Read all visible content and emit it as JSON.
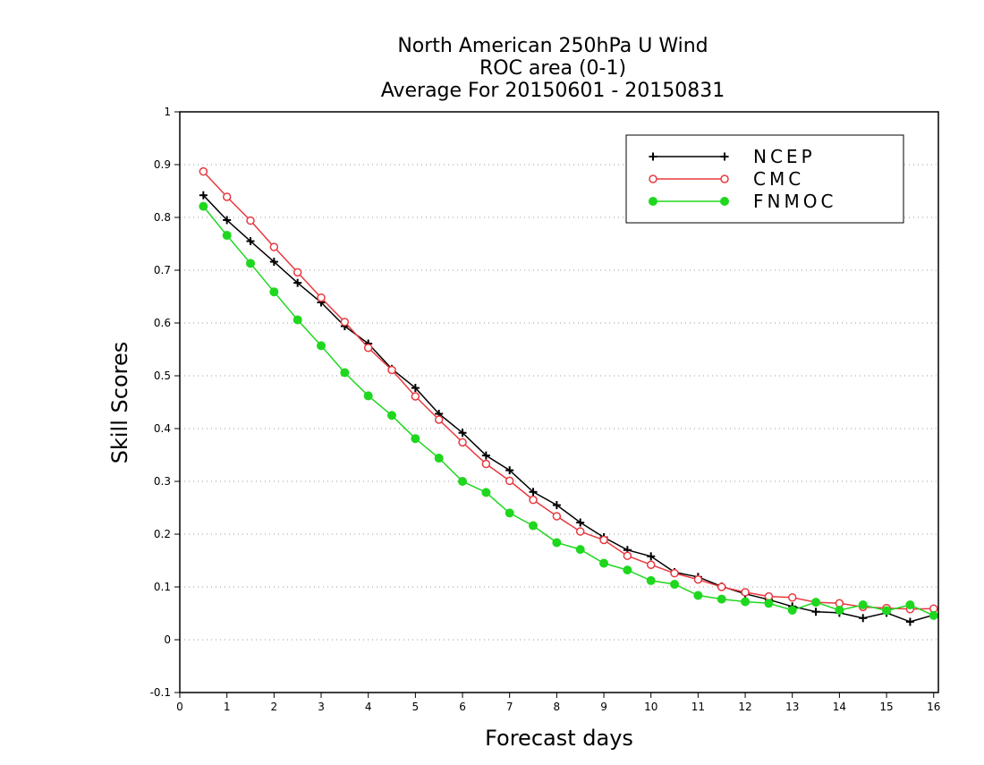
{
  "chart_data": {
    "type": "line",
    "title_lines": [
      "North American 250hPa U Wind",
      "ROC area (0-1)",
      "Average For 20150601 - 20150831"
    ],
    "xlabel": "Forecast days",
    "ylabel": "Skill Scores",
    "xlim": [
      0,
      16.1
    ],
    "ylim": [
      -0.1,
      1
    ],
    "x_ticks": [
      0,
      1,
      2,
      3,
      4,
      5,
      6,
      7,
      8,
      9,
      10,
      11,
      12,
      13,
      14,
      15,
      16
    ],
    "x_tick_labels": [
      "0",
      "1",
      "2",
      "3",
      "4",
      "5",
      "6",
      "7",
      "8",
      "9",
      "10",
      "11",
      "12",
      "13",
      "14",
      "15",
      "16"
    ],
    "y_ticks": [
      -0.1,
      0,
      0.1,
      0.2,
      0.3,
      0.4,
      0.5,
      0.6,
      0.7,
      0.8,
      0.9,
      1
    ],
    "y_tick_labels": [
      "-0.1",
      "0",
      "0.1",
      "0.2",
      "0.3",
      "0.4",
      "0.5",
      "0.6",
      "0.7",
      "0.8",
      "0.9",
      "1"
    ],
    "grid": "horizontal dotted",
    "legend_position": "top-right",
    "x": [
      0.5,
      1,
      1.5,
      2,
      2.5,
      3,
      3.5,
      4,
      4.5,
      5,
      5.5,
      6,
      6.5,
      7,
      7.5,
      8,
      8.5,
      9,
      9.5,
      10,
      10.5,
      11,
      11.5,
      12,
      12.5,
      13,
      13.5,
      14,
      14.5,
      15,
      15.5,
      16
    ],
    "series": [
      {
        "name": "NCEP",
        "color": "#000000",
        "marker": "plus",
        "values": [
          0.842,
          0.795,
          0.755,
          0.716,
          0.676,
          0.639,
          0.594,
          0.561,
          0.513,
          0.477,
          0.428,
          0.392,
          0.349,
          0.321,
          0.28,
          0.255,
          0.222,
          0.194,
          0.17,
          0.158,
          0.128,
          0.119,
          0.101,
          0.087,
          0.076,
          0.063,
          0.053,
          0.051,
          0.041,
          0.051,
          0.034,
          0.047
        ]
      },
      {
        "name": "CMC",
        "color": "#e8393f",
        "marker": "open-circle",
        "values": [
          0.887,
          0.839,
          0.794,
          0.744,
          0.696,
          0.648,
          0.602,
          0.553,
          0.511,
          0.461,
          0.417,
          0.374,
          0.333,
          0.301,
          0.265,
          0.234,
          0.205,
          0.189,
          0.159,
          0.142,
          0.126,
          0.114,
          0.1,
          0.09,
          0.082,
          0.08,
          0.071,
          0.069,
          0.062,
          0.06,
          0.058,
          0.059
        ]
      },
      {
        "name": "FNMOC",
        "color": "#1fd71f",
        "marker": "filled-circle",
        "values": [
          0.821,
          0.766,
          0.713,
          0.659,
          0.606,
          0.557,
          0.506,
          0.462,
          0.425,
          0.381,
          0.344,
          0.3,
          0.279,
          0.24,
          0.216,
          0.184,
          0.171,
          0.145,
          0.132,
          0.112,
          0.105,
          0.084,
          0.077,
          0.072,
          0.069,
          0.056,
          0.071,
          0.056,
          0.066,
          0.055,
          0.066,
          0.046
        ]
      }
    ]
  }
}
